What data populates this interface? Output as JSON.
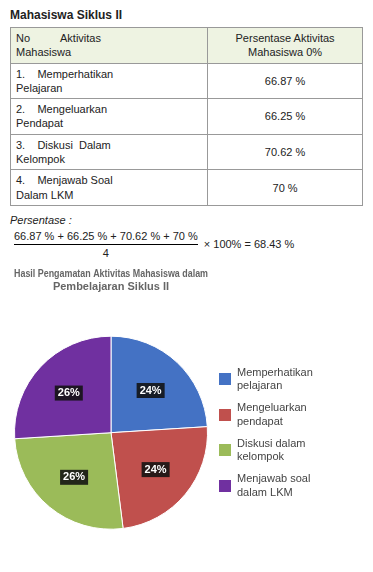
{
  "title": "Mahasiswa Siklus II",
  "table": {
    "columns": [
      "No          Aktivitas\nMahasiswa",
      "Persentase Aktivitas\nMahasiswa 0%"
    ],
    "rows": [
      [
        "1.    Memperhatikan\nPelajaran",
        "66.87 %"
      ],
      [
        "2.    Mengeluarkan\nPendapat",
        "66.25 %"
      ],
      [
        "3.    Diskusi  Dalam\nKelompok",
        "70.62 %"
      ],
      [
        "4.    Menjawab Soal\nDalam LKM",
        "70 %"
      ]
    ]
  },
  "annotations": [
    "Persentase :",
    "66.87 % + 66.25 % + 70.62 % + 70 %",
    "4",
    "× 100% = 68.43 %"
  ],
  "chart_data": {
    "type": "pie",
    "title": "Hasil Pengamatan Aktivitas Mahasiswa dalam\nPembelajaran Siklus II",
    "categories": [
      "Memperhatikan\npelajaran",
      "Mengeluarkan\npendapat",
      "Diskusi dalam\nkelompok",
      "Menjawab soal\ndalam LKM"
    ],
    "values": [
      24,
      24,
      26,
      26
    ],
    "value_labels": [
      "24%",
      "24%",
      "26%",
      "26%"
    ],
    "colors": [
      "#4472C4",
      "#C0504D",
      "#9BBB59",
      "#7030A0"
    ],
    "data_labels": true,
    "legend": "right"
  }
}
